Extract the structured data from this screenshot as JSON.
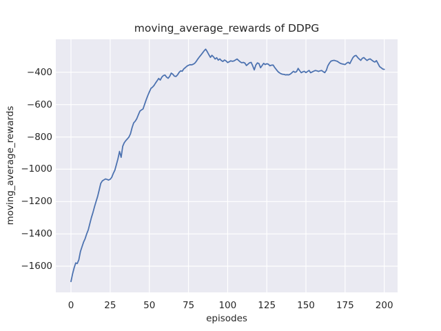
{
  "chart_data": {
    "type": "line",
    "title": "moving_average_rewards of DDPG",
    "xlabel": "episodes",
    "ylabel": "moving_average_rewards",
    "xticks": [
      0,
      25,
      50,
      75,
      100,
      125,
      150,
      175,
      200
    ],
    "yticks": [
      -400,
      -600,
      -800,
      -1000,
      -1200,
      -1400,
      -1600
    ],
    "xlim": [
      -9.7,
      208.5
    ],
    "ylim": [
      -1762,
      -196
    ],
    "grid": true,
    "legend": false,
    "style": {
      "axes_bg": "#eaeaf2",
      "grid_color": "#ffffff",
      "line_color": "#4c72b0",
      "text_color": "#262626",
      "figure_bg": "#ffffff"
    },
    "series": [
      {
        "name": "moving_average_rewards",
        "x_start": 0,
        "x_step": 1,
        "y": [
          -1695,
          -1648,
          -1610,
          -1580,
          -1583,
          -1560,
          -1510,
          -1480,
          -1452,
          -1430,
          -1400,
          -1375,
          -1338,
          -1300,
          -1268,
          -1233,
          -1200,
          -1168,
          -1128,
          -1088,
          -1072,
          -1066,
          -1060,
          -1063,
          -1067,
          -1062,
          -1050,
          -1026,
          -1006,
          -970,
          -935,
          -890,
          -926,
          -858,
          -836,
          -823,
          -812,
          -800,
          -780,
          -742,
          -713,
          -703,
          -687,
          -663,
          -640,
          -633,
          -627,
          -598,
          -570,
          -545,
          -522,
          -500,
          -492,
          -482,
          -466,
          -452,
          -438,
          -448,
          -430,
          -420,
          -417,
          -430,
          -437,
          -425,
          -405,
          -412,
          -424,
          -426,
          -416,
          -401,
          -391,
          -394,
          -379,
          -371,
          -362,
          -357,
          -353,
          -354,
          -350,
          -344,
          -332,
          -317,
          -305,
          -293,
          -280,
          -267,
          -257,
          -273,
          -291,
          -308,
          -295,
          -305,
          -318,
          -310,
          -325,
          -317,
          -328,
          -333,
          -324,
          -330,
          -340,
          -335,
          -329,
          -332,
          -330,
          -324,
          -318,
          -327,
          -335,
          -341,
          -339,
          -343,
          -358,
          -350,
          -341,
          -339,
          -360,
          -385,
          -355,
          -342,
          -346,
          -372,
          -358,
          -345,
          -352,
          -347,
          -350,
          -360,
          -356,
          -355,
          -370,
          -382,
          -395,
          -403,
          -409,
          -412,
          -413,
          -416,
          -415,
          -416,
          -411,
          -403,
          -394,
          -400,
          -396,
          -376,
          -390,
          -403,
          -397,
          -394,
          -402,
          -395,
          -389,
          -403,
          -398,
          -393,
          -389,
          -391,
          -395,
          -391,
          -389,
          -396,
          -402,
          -388,
          -360,
          -343,
          -331,
          -328,
          -326,
          -329,
          -332,
          -339,
          -345,
          -348,
          -350,
          -352,
          -343,
          -338,
          -346,
          -328,
          -309,
          -299,
          -296,
          -308,
          -318,
          -326,
          -313,
          -309,
          -319,
          -327,
          -320,
          -317,
          -325,
          -332,
          -337,
          -328,
          -346,
          -365,
          -372,
          -380,
          -382
        ]
      }
    ]
  }
}
